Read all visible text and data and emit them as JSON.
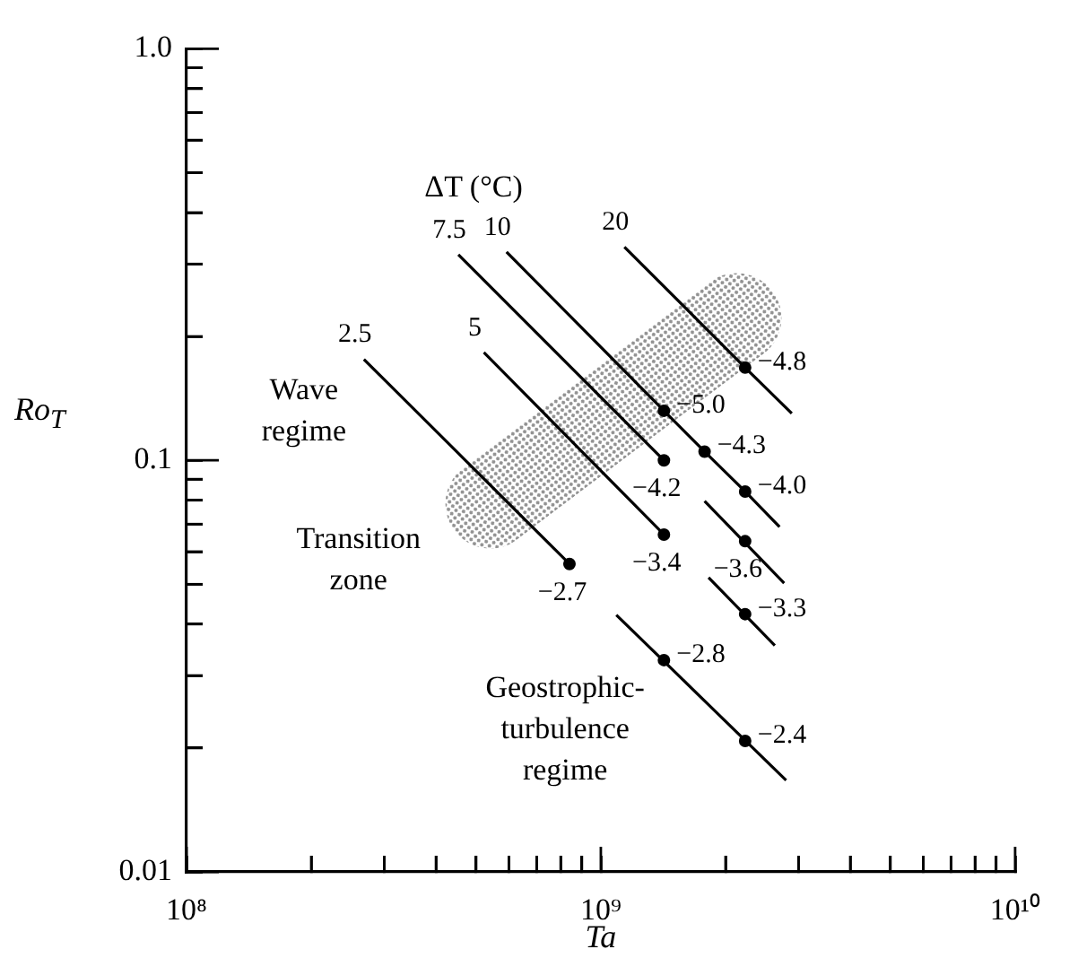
{
  "chart_data": {
    "type": "line",
    "xlabel": "Ta",
    "ylabel": "Ro$_{T}$",
    "log": "xy",
    "grid": false,
    "legend": false,
    "marker": "none",
    "line_style": "solid",
    "xlim": [
      100000000,
      10000000000
    ],
    "xticks": [
      {
        "value": 100000000,
        "label": "10⁸"
      },
      {
        "value": 200000000,
        "label": null
      },
      {
        "value": 300000000,
        "label": null
      },
      {
        "value": 400000000,
        "label": null
      },
      {
        "value": 500000000,
        "label": null
      },
      {
        "value": 600000000,
        "label": null
      },
      {
        "value": 700000000,
        "label": null
      },
      {
        "value": 800000000,
        "label": null
      },
      {
        "value": 900000000,
        "label": null
      },
      {
        "value": 1000000000,
        "label": "10⁹"
      },
      {
        "value": 2000000000,
        "label": null
      },
      {
        "value": 3000000000,
        "label": null
      },
      {
        "value": 4000000000,
        "label": null
      },
      {
        "value": 5000000000,
        "label": null
      },
      {
        "value": 6000000000,
        "label": null
      },
      {
        "value": 7000000000,
        "label": null
      },
      {
        "value": 8000000000,
        "label": null
      },
      {
        "value": 9000000000,
        "label": null
      },
      {
        "value": 10000000000,
        "label": "10¹⁰"
      }
    ],
    "ylim": [
      0.01,
      1.0
    ],
    "yticks": [
      0.01,
      {
        "value": 0.02,
        "label": null
      },
      {
        "value": 0.03,
        "label": null
      },
      {
        "value": 0.04,
        "label": null
      },
      {
        "value": 0.05,
        "label": null
      },
      {
        "value": 0.06,
        "label": null
      },
      {
        "value": 0.07,
        "label": null
      },
      {
        "value": 0.08,
        "label": null
      },
      {
        "value": 0.09,
        "label": null
      },
      0.1,
      {
        "value": 0.2,
        "label": null
      },
      {
        "value": 0.3,
        "label": null
      },
      {
        "value": 0.4,
        "label": null
      },
      {
        "value": 0.5,
        "label": null
      },
      {
        "value": 0.6,
        "label": null
      },
      {
        "value": 0.7,
        "label": null
      },
      {
        "value": 0.8,
        "label": null
      },
      {
        "value": 0.9,
        "label": null
      },
      {
        "value": 1.0,
        "label": "1.0"
      }
    ],
    "series": [
      {
        "name": "2.5",
        "color": "#000000",
        "x": [
          268000000,
          840000000,
          950000000,
          1090000000,
          2800000000
        ],
        "values": [
          0.176,
          0.056,
          null,
          0.0421,
          0.0167
        ]
      },
      {
        "name": "5",
        "color": "#000000",
        "x": [
          522000000,
          1420000000,
          1600000000,
          1820000000,
          2630000000
        ],
        "values": [
          0.183,
          0.066,
          null,
          0.0519,
          0.0355
        ]
      },
      {
        "name": "7.5",
        "color": "#000000",
        "x": [
          453000000,
          1420000000,
          1600000000,
          1780000000,
          2770000000
        ],
        "values": [
          0.316,
          0.1,
          null,
          0.0796,
          0.0503
        ]
      },
      {
        "name": "10",
        "color": "#000000",
        "x": [
          592000000,
          1420000000,
          1780000000,
          2230000000,
          2700000000
        ],
        "values": [
          0.321,
          0.132,
          0.105,
          0.084,
          0.0689
        ]
      },
      {
        "name": "20",
        "color": "#000000",
        "x": [
          1140000000,
          2230000000,
          2890000000
        ],
        "values": [
          0.33,
          0.168,
          0.13
        ]
      },
      {
        "type": "scatter",
        "marker": "circle",
        "color": "#000000",
        "x": [
          840000000,
          1420000000,
          1420000000,
          1420000000,
          1780000000,
          2230000000,
          2230000000,
          2230000000,
          1420000000,
          2230000000,
          2230000000
        ],
        "values": [
          0.056,
          0.066,
          0.1,
          0.132,
          0.105,
          0.084,
          0.0636,
          0.0423,
          0.0327,
          0.0208,
          0.168
        ]
      }
    ],
    "annotations": [
      "ΔT (°C)",
      "Wave\nregime",
      "Transition\nzone",
      "Geostrophic-\nturbulence\nregime",
      {
        "text": "−2.7",
        "x": 840000000,
        "y": 0.056
      },
      {
        "text": "−3.4",
        "x": 1420000000,
        "y": 0.066
      },
      {
        "text": "−4.2",
        "x": 1420000000,
        "y": 0.1
      },
      {
        "text": "−5.0",
        "x": 1420000000,
        "y": 0.132
      },
      {
        "text": "−4.3",
        "x": 1780000000,
        "y": 0.105
      },
      {
        "text": "−4.0",
        "x": 2230000000,
        "y": 0.084
      },
      {
        "text": "−3.6",
        "x": 2230000000,
        "y": 0.0636
      },
      {
        "text": "−3.3",
        "x": 2230000000,
        "y": 0.0423
      },
      {
        "text": "−2.8",
        "x": 1420000000,
        "y": 0.0327
      },
      {
        "text": "−2.4",
        "x": 2230000000,
        "y": 0.0208
      },
      {
        "text": "−4.8",
        "x": 2230000000,
        "y": 0.168
      }
    ]
  }
}
